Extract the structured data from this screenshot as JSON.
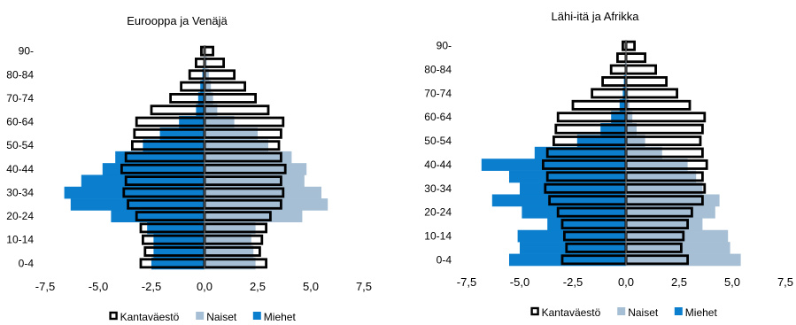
{
  "chart_data": [
    {
      "type": "bar",
      "subtype": "population-pyramid",
      "title": "Eurooppa ja Venäjä",
      "y_labels": [
        "0-4",
        "10-14",
        "20-24",
        "30-34",
        "40-44",
        "50-54",
        "60-64",
        "70-74",
        "80-84",
        "90-"
      ],
      "age_groups": [
        "0-4",
        "5-9",
        "10-14",
        "15-19",
        "20-24",
        "25-29",
        "30-34",
        "35-39",
        "40-44",
        "45-49",
        "50-54",
        "55-59",
        "60-64",
        "65-69",
        "70-74",
        "75-79",
        "80-84",
        "85-89",
        "90-"
      ],
      "x_ticks": [
        "-7,5",
        "-5,0",
        "-2,5",
        "0,0",
        "2,5",
        "5,0",
        "7,5"
      ],
      "xlim": [
        -7.5,
        7.5
      ],
      "legend": [
        "Kantaväestö",
        "Naiset",
        "Miehet"
      ],
      "legend_position": "bottom",
      "colors": {
        "naiset": "#a6bfd4",
        "miehet": "#0b7fce",
        "kantavaesto_stroke": "#000000"
      },
      "series": [
        {
          "name": "Kantaväestö",
          "side": "male",
          "values": [
            3.0,
            2.8,
            2.9,
            3.0,
            3.2,
            3.6,
            3.8,
            3.7,
            3.9,
            3.7,
            3.4,
            3.3,
            3.2,
            2.5,
            1.6,
            1.1,
            0.7,
            0.4,
            0.15
          ]
        },
        {
          "name": "Kantaväestö",
          "side": "female",
          "values": [
            2.9,
            2.6,
            2.7,
            2.9,
            3.1,
            3.6,
            3.7,
            3.6,
            3.8,
            3.6,
            3.5,
            3.6,
            3.7,
            3.0,
            2.4,
            1.9,
            1.4,
            0.9,
            0.4
          ]
        },
        {
          "name": "Naiset",
          "values": [
            2.4,
            2.3,
            2.2,
            2.4,
            4.6,
            5.8,
            5.5,
            4.7,
            4.8,
            4.1,
            3.0,
            2.5,
            1.4,
            0.6,
            0.4,
            0.3,
            0.2,
            0.1,
            0.05
          ]
        },
        {
          "name": "Miehet",
          "values": [
            -2.5,
            -2.4,
            -2.4,
            -2.7,
            -4.4,
            -6.3,
            -6.6,
            -5.8,
            -4.8,
            -4.2,
            -2.9,
            -2.1,
            -1.2,
            -0.4,
            -0.3,
            -0.2,
            -0.1,
            -0.05,
            -0.02
          ]
        }
      ]
    },
    {
      "type": "bar",
      "subtype": "population-pyramid",
      "title": "Lähi-itä ja Afrikka",
      "y_labels": [
        "0-4",
        "10-14",
        "20-24",
        "30-34",
        "40-44",
        "50-54",
        "60-64",
        "70-74",
        "80-84",
        "90-"
      ],
      "age_groups": [
        "0-4",
        "5-9",
        "10-14",
        "15-19",
        "20-24",
        "25-29",
        "30-34",
        "35-39",
        "40-44",
        "45-49",
        "50-54",
        "55-59",
        "60-64",
        "65-69",
        "70-74",
        "75-79",
        "80-84",
        "85-89",
        "90-"
      ],
      "x_ticks": [
        "-7,5",
        "-5,0",
        "-2,5",
        "0,0",
        "2,5",
        "5,0",
        "7,5"
      ],
      "xlim": [
        -7.5,
        7.5
      ],
      "legend": [
        "Kantaväestö",
        "Naiset",
        "Miehet"
      ],
      "legend_position": "bottom",
      "colors": {
        "naiset": "#a6bfd4",
        "miehet": "#0b7fce",
        "kantavaesto_stroke": "#000000"
      },
      "series": [
        {
          "name": "Kantaväestö",
          "side": "male",
          "values": [
            3.0,
            2.8,
            2.9,
            3.0,
            3.2,
            3.6,
            3.8,
            3.7,
            3.9,
            3.7,
            3.4,
            3.3,
            3.2,
            2.5,
            1.6,
            1.1,
            0.7,
            0.4,
            0.15
          ]
        },
        {
          "name": "Kantaväestö",
          "side": "female",
          "values": [
            2.9,
            2.6,
            2.7,
            2.9,
            3.1,
            3.6,
            3.7,
            3.6,
            3.8,
            3.6,
            3.5,
            3.6,
            3.7,
            3.0,
            2.4,
            1.9,
            1.4,
            0.9,
            0.4
          ]
        },
        {
          "name": "Naiset",
          "values": [
            5.4,
            4.9,
            4.8,
            3.6,
            4.2,
            4.4,
            3.6,
            3.3,
            2.9,
            1.7,
            0.9,
            0.5,
            0.3,
            0.15,
            0.1,
            0.05,
            0.04,
            0.02,
            0.01
          ]
        },
        {
          "name": "Miehet",
          "values": [
            -5.5,
            -5.0,
            -5.1,
            -3.7,
            -4.9,
            -6.3,
            -5.0,
            -5.5,
            -6.8,
            -4.3,
            -2.3,
            -1.2,
            -0.7,
            -0.3,
            -0.15,
            -0.1,
            -0.05,
            -0.03,
            -0.01
          ]
        }
      ]
    }
  ]
}
